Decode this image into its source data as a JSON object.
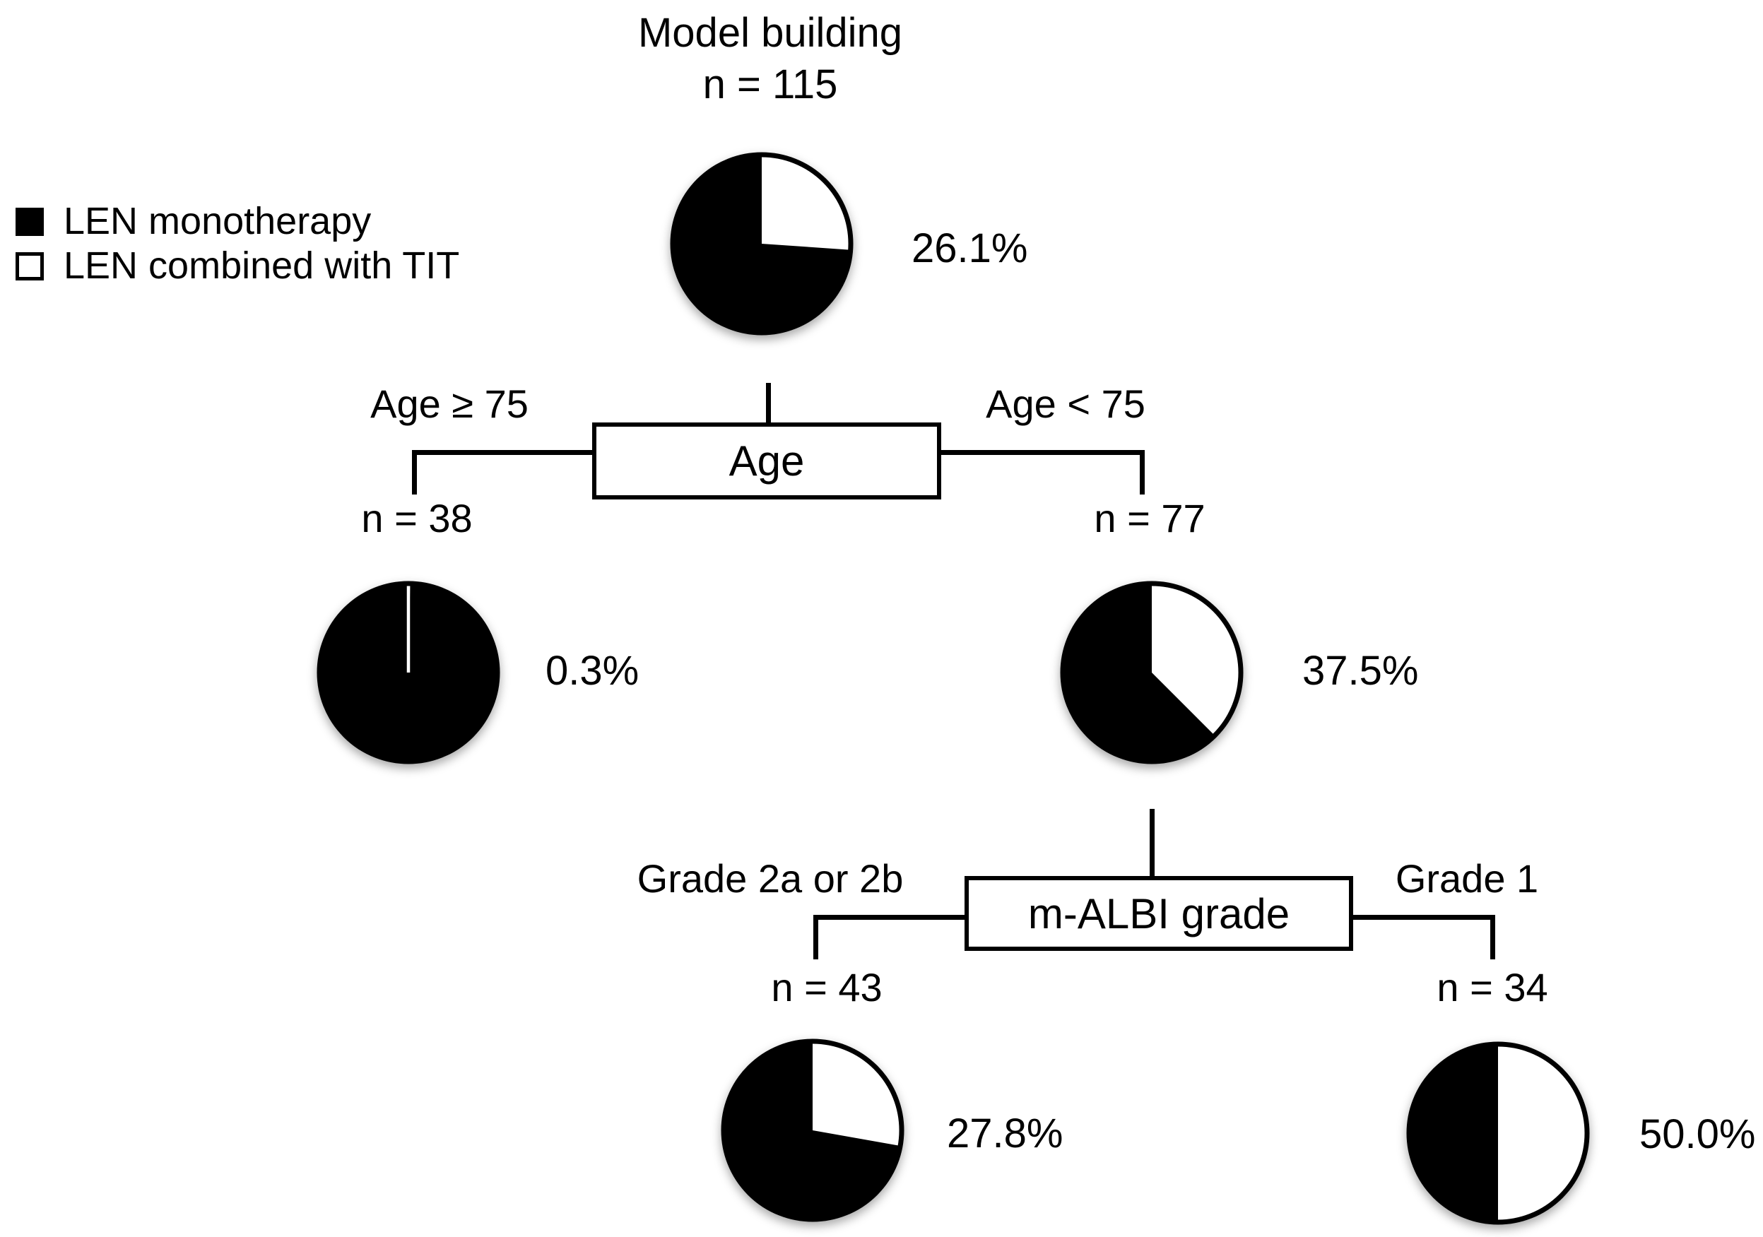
{
  "figure": {
    "title": "Model building"
  },
  "legend": {
    "items": [
      {
        "swatch": "black",
        "label": "LEN monotherapy"
      },
      {
        "swatch": "white",
        "label": "LEN combined with TIT"
      }
    ]
  },
  "colors": {
    "len_monotherapy": "#000000",
    "len_combined_with_tit": "#ffffff",
    "outline": "#000000"
  },
  "tree": {
    "nodes": {
      "root": {
        "n_label": "n = 115",
        "pct": 26.1,
        "pct_label": "26.1%"
      },
      "age_ge_75": {
        "n_label": "n = 38",
        "pct": 0.3,
        "pct_label": "0.3%"
      },
      "age_lt_75": {
        "n_label": "n = 77",
        "pct": 37.5,
        "pct_label": "37.5%"
      },
      "grade_2a_or_2b": {
        "n_label": "n = 43",
        "pct": 27.8,
        "pct_label": "27.8%"
      },
      "grade_1": {
        "n_label": "n = 34",
        "pct": 50.0,
        "pct_label": "50.0%"
      }
    },
    "splits": [
      {
        "box_label": "Age",
        "left_branch_label": "Age ≥ 75",
        "right_branch_label": "Age < 75"
      },
      {
        "box_label": "m-ALBI grade",
        "left_branch_label": "Grade 2a or 2b",
        "right_branch_label": "Grade 1"
      }
    ]
  },
  "chart_data": [
    {
      "type": "pie",
      "title": "Model building",
      "n": 115,
      "slices": [
        {
          "label": "LEN combined with TIT",
          "pct": 26.1
        },
        {
          "label": "LEN monotherapy",
          "pct": 73.9
        }
      ],
      "annotation": "26.1%"
    },
    {
      "type": "pie",
      "title": "Age ≥ 75",
      "n": 38,
      "slices": [
        {
          "label": "LEN combined with TIT",
          "pct": 0.3
        },
        {
          "label": "LEN monotherapy",
          "pct": 99.7
        }
      ],
      "annotation": "0.3%"
    },
    {
      "type": "pie",
      "title": "Age < 75",
      "n": 77,
      "slices": [
        {
          "label": "LEN combined with TIT",
          "pct": 37.5
        },
        {
          "label": "LEN monotherapy",
          "pct": 62.5
        }
      ],
      "annotation": "37.5%"
    },
    {
      "type": "pie",
      "title": "m-ALBI grade 2a or 2b",
      "n": 43,
      "slices": [
        {
          "label": "LEN combined with TIT",
          "pct": 27.8
        },
        {
          "label": "LEN monotherapy",
          "pct": 72.2
        }
      ],
      "annotation": "27.8%"
    },
    {
      "type": "pie",
      "title": "m-ALBI grade 1",
      "n": 34,
      "slices": [
        {
          "label": "LEN combined with TIT",
          "pct": 50.0
        },
        {
          "label": "LEN monotherapy",
          "pct": 50.0
        }
      ],
      "annotation": "50.0%"
    }
  ]
}
